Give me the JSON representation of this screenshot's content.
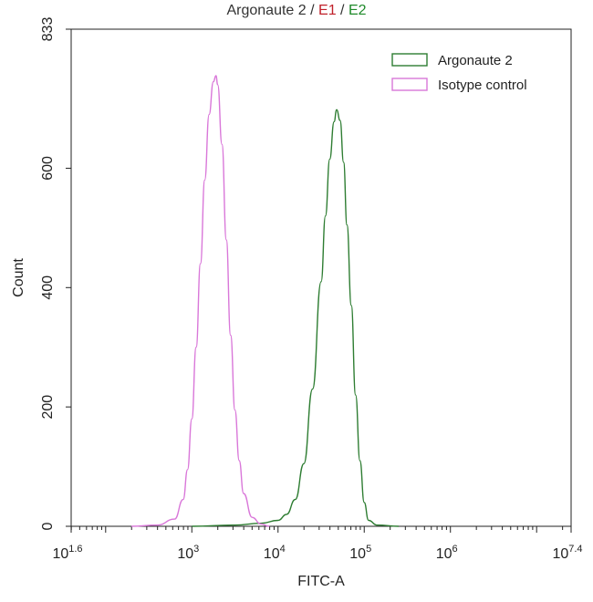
{
  "chart_data": {
    "type": "line",
    "title": {
      "parts": [
        {
          "text": "Argonaute 2",
          "color": "#333333"
        },
        {
          "text": " / ",
          "color": "#333333"
        },
        {
          "text": "E1",
          "color": "#c0202a"
        },
        {
          "text": " / ",
          "color": "#333333"
        },
        {
          "text": "E2",
          "color": "#1f8a2a"
        }
      ]
    },
    "xlabel": "FITC-A",
    "ylabel": "Count",
    "x_scale": "log10",
    "xlim_log10": [
      1.6,
      7.4
    ],
    "ylim": [
      0,
      833
    ],
    "x_ticks": [
      {
        "base": "10",
        "exp": "1.6",
        "log10": 1.6
      },
      {
        "base": "10",
        "exp": "3",
        "log10": 3
      },
      {
        "base": "10",
        "exp": "4",
        "log10": 4
      },
      {
        "base": "10",
        "exp": "5",
        "log10": 5
      },
      {
        "base": "10",
        "exp": "6",
        "log10": 6
      },
      {
        "base": "10",
        "exp": "7.4",
        "log10": 7.4
      }
    ],
    "y_ticks": [
      0,
      200,
      400,
      600,
      833
    ],
    "grid": false,
    "legend_position": "top-right",
    "series": [
      {
        "name": "Argonaute 2",
        "color": "#2e7d32",
        "points_log10_x": [
          [
            3.0,
            0
          ],
          [
            3.5,
            2
          ],
          [
            3.8,
            5
          ],
          [
            4.0,
            10
          ],
          [
            4.1,
            20
          ],
          [
            4.2,
            45
          ],
          [
            4.3,
            105
          ],
          [
            4.4,
            230
          ],
          [
            4.5,
            410
          ],
          [
            4.55,
            520
          ],
          [
            4.6,
            615
          ],
          [
            4.65,
            678
          ],
          [
            4.68,
            698
          ],
          [
            4.72,
            680
          ],
          [
            4.76,
            610
          ],
          [
            4.8,
            505
          ],
          [
            4.85,
            370
          ],
          [
            4.9,
            220
          ],
          [
            4.95,
            110
          ],
          [
            5.0,
            40
          ],
          [
            5.05,
            10
          ],
          [
            5.15,
            2
          ],
          [
            5.4,
            0
          ]
        ]
      },
      {
        "name": "Isotype control",
        "color": "#d977d9",
        "points_log10_x": [
          [
            2.3,
            0
          ],
          [
            2.6,
            2
          ],
          [
            2.8,
            12
          ],
          [
            2.9,
            45
          ],
          [
            2.95,
            95
          ],
          [
            3.0,
            180
          ],
          [
            3.05,
            300
          ],
          [
            3.1,
            440
          ],
          [
            3.15,
            580
          ],
          [
            3.2,
            690
          ],
          [
            3.25,
            745
          ],
          [
            3.28,
            755
          ],
          [
            3.3,
            740
          ],
          [
            3.35,
            640
          ],
          [
            3.4,
            480
          ],
          [
            3.45,
            320
          ],
          [
            3.5,
            195
          ],
          [
            3.55,
            110
          ],
          [
            3.6,
            55
          ],
          [
            3.7,
            15
          ],
          [
            3.8,
            4
          ],
          [
            3.9,
            0
          ]
        ]
      }
    ]
  }
}
